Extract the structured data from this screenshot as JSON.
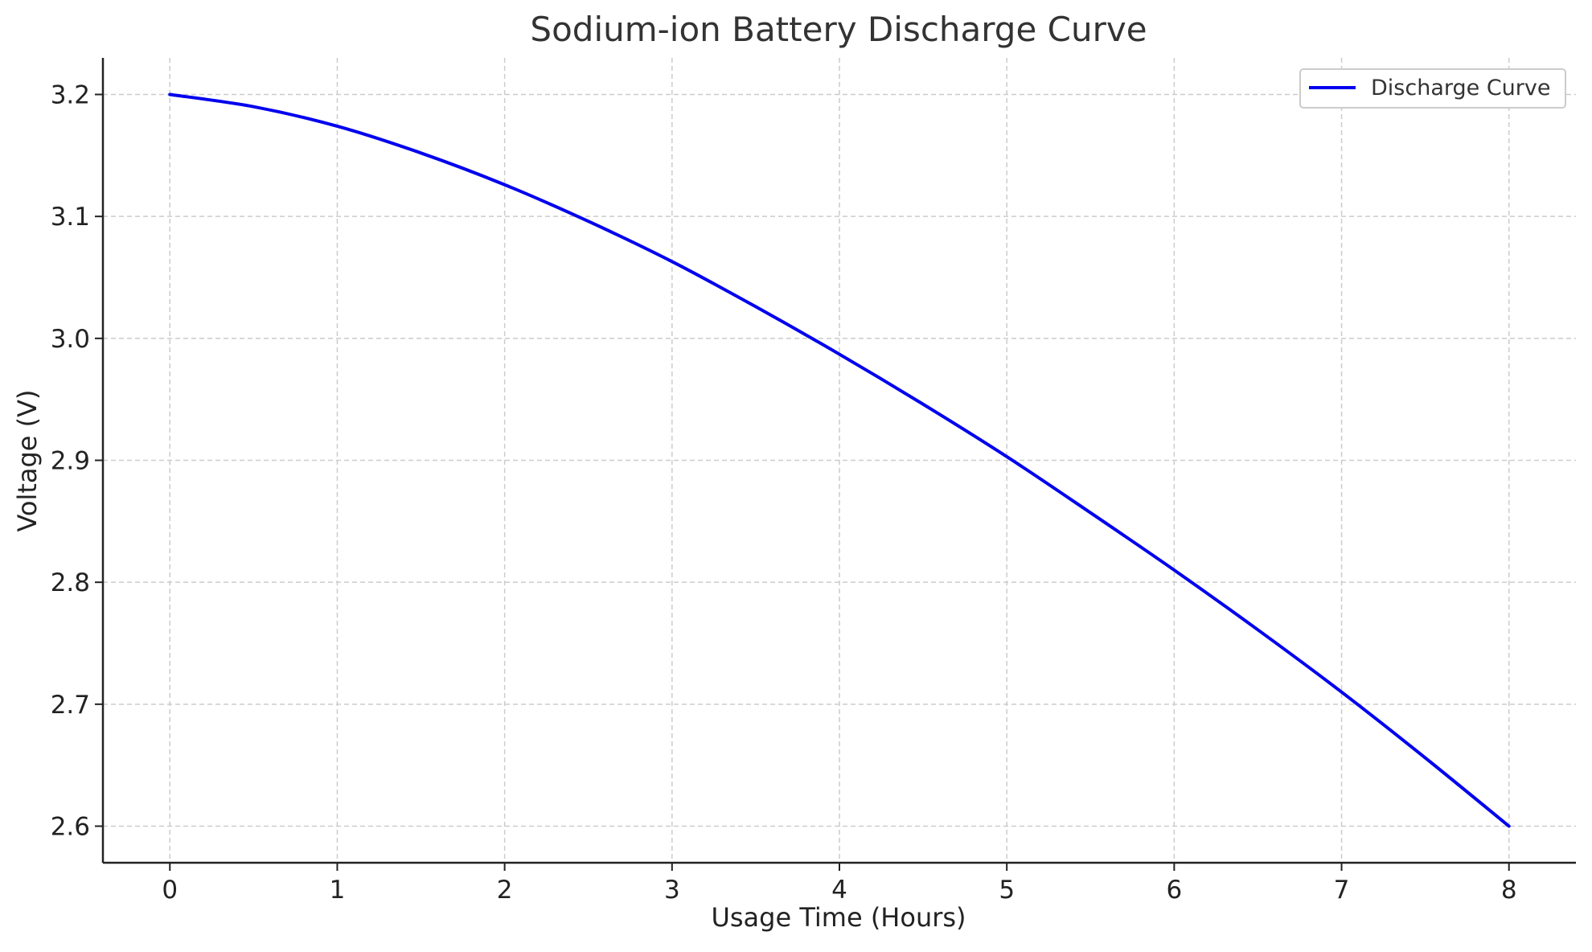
{
  "chart_data": {
    "type": "line",
    "title": "Sodium-ion Battery Discharge Curve",
    "xlabel": "Usage Time (Hours)",
    "ylabel": "Voltage (V)",
    "xlim": [
      -0.4,
      8.4
    ],
    "ylim": [
      2.57,
      3.23
    ],
    "xticks": [
      0,
      1,
      2,
      3,
      4,
      5,
      6,
      7,
      8
    ],
    "xtick_labels": [
      "0",
      "1",
      "2",
      "3",
      "4",
      "5",
      "6",
      "7",
      "8"
    ],
    "yticks": [
      2.6,
      2.7,
      2.8,
      2.9,
      3.0,
      3.1,
      3.2
    ],
    "ytick_labels": [
      "2.6",
      "2.7",
      "2.8",
      "2.9",
      "3.0",
      "3.1",
      "3.2"
    ],
    "grid": true,
    "legend_position": "top-right",
    "series": [
      {
        "name": "Discharge Curve",
        "color": "#0000ee",
        "x": [
          0,
          0.5,
          1,
          1.5,
          2,
          2.5,
          3,
          3.5,
          4,
          4.5,
          5,
          5.5,
          6,
          6.5,
          7,
          7.5,
          8
        ],
        "y": [
          3.2,
          3.19,
          3.174,
          3.152,
          3.126,
          3.096,
          3.063,
          3.026,
          2.987,
          2.946,
          2.903,
          2.857,
          2.81,
          2.761,
          2.71,
          2.656,
          2.6
        ]
      }
    ]
  }
}
